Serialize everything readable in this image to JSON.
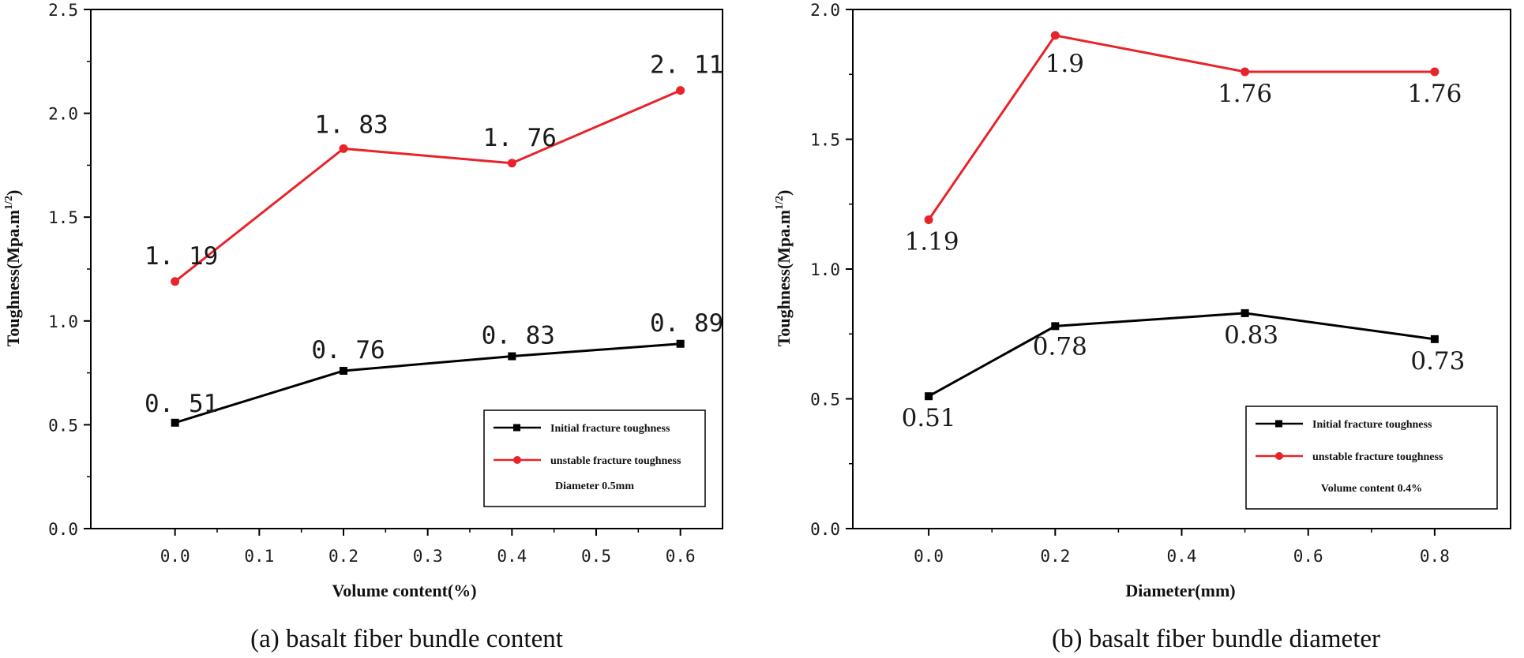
{
  "chart_data": [
    {
      "type": "line",
      "panel": "a",
      "xlabel": "Volume content(%)",
      "ylabel": "Toughness(Mpa.m",
      "ylabel_sup": "1/2",
      "caption": "(a) basalt fiber bundle content",
      "xlim": [
        -0.1,
        0.65
      ],
      "ylim": [
        0,
        2.5
      ],
      "xticks": [
        0.0,
        0.1,
        0.2,
        0.3,
        0.4,
        0.5,
        0.6
      ],
      "xtick_labels": [
        "0.0",
        "0.1",
        "0.2",
        "0.3",
        "0.4",
        "0.5",
        "0.6"
      ],
      "yticks": [
        0.0,
        0.5,
        1.0,
        1.5,
        2.0,
        2.5
      ],
      "ytick_labels": [
        "0.0",
        "0.5",
        "1.0",
        "1.5",
        "2.0",
        "2.5"
      ],
      "grid": false,
      "legend_position": "bottom-right",
      "legend_note": "Diameter 0.5mm",
      "series": [
        {
          "name": "Initial fracture toughness",
          "color": "#000000",
          "marker": "square",
          "x": [
            0.0,
            0.2,
            0.4,
            0.6
          ],
          "values": [
            0.51,
            0.76,
            0.83,
            0.89
          ],
          "labels": [
            "0. 51",
            "0. 76",
            "0. 83",
            "0. 89"
          ]
        },
        {
          "name": "unstable fracture toughness",
          "color": "#e8232a",
          "marker": "circle",
          "x": [
            0.0,
            0.2,
            0.4,
            0.6
          ],
          "values": [
            1.19,
            1.83,
            1.76,
            2.11
          ],
          "labels": [
            "1. 19",
            "1. 83",
            "1. 76",
            "2. 11"
          ]
        }
      ]
    },
    {
      "type": "line",
      "panel": "b",
      "xlabel": "Diameter(mm)",
      "ylabel": "Toughness(Mpa.m",
      "ylabel_sup": "1/2",
      "caption": "(b) basalt fiber bundle diameter",
      "xlim": [
        -0.12,
        0.92
      ],
      "ylim": [
        0,
        2.0
      ],
      "xticks": [
        0.0,
        0.2,
        0.4,
        0.6,
        0.8
      ],
      "xtick_labels": [
        "0.0",
        "0.2",
        "0.4",
        "0.6",
        "0.8"
      ],
      "yticks": [
        0.0,
        0.5,
        1.0,
        1.5,
        2.0
      ],
      "ytick_labels": [
        "0.0",
        "0.5",
        "1.0",
        "1.5",
        "2.0"
      ],
      "grid": false,
      "legend_position": "bottom-right",
      "legend_note": "Volume content 0.4%",
      "series": [
        {
          "name": "Initial fracture toughness",
          "color": "#000000",
          "marker": "square",
          "x": [
            0.0,
            0.2,
            0.5,
            0.8
          ],
          "values": [
            0.51,
            0.78,
            0.83,
            0.73
          ],
          "labels": [
            "0.51",
            "0.78",
            "0.83",
            "0.73"
          ]
        },
        {
          "name": "unstable fracture toughness",
          "color": "#e8232a",
          "marker": "circle",
          "x": [
            0.0,
            0.2,
            0.5,
            0.8
          ],
          "values": [
            1.19,
            1.9,
            1.76,
            1.76
          ],
          "labels": [
            "1.19",
            "1.9",
            "1.76",
            "1.76"
          ]
        }
      ]
    }
  ]
}
